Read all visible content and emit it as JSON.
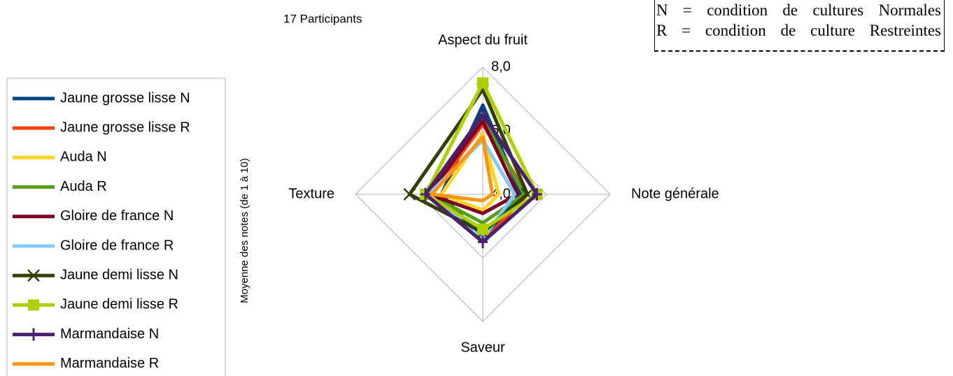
{
  "chart_data": {
    "type": "radar",
    "subtitle": "17 Participants",
    "axis_label": "Moyenne des notes (de 1 à 10)",
    "annotations": [
      "N = condition de cultures Normales",
      "R = condition de culture Restreintes"
    ],
    "categories": [
      "Aspect du fruit",
      "Note générale",
      "Saveur",
      "Texture"
    ],
    "rlim": [
      4,
      8
    ],
    "rticks": [
      {
        "value": 4,
        "label": "4,0"
      },
      {
        "value": 6,
        "label": "6,0"
      },
      {
        "value": 8,
        "label": "8,0"
      }
    ],
    "grid": true,
    "legend": "left",
    "series": [
      {
        "name": "Jaune grosse lisse N",
        "color": "#004586",
        "values": [
          6.8,
          5.2,
          5.4,
          5.3
        ]
      },
      {
        "name": "Jaune grosse lisse R",
        "color": "#ff420e",
        "values": [
          6.2,
          5.4,
          5.5,
          5.6
        ]
      },
      {
        "name": "Auda N",
        "color": "#ffd320",
        "values": [
          5.9,
          4.5,
          4.5,
          5.3
        ]
      },
      {
        "name": "Auda R",
        "color": "#579d1c",
        "values": [
          6.4,
          5.3,
          4.9,
          5.7
        ]
      },
      {
        "name": "Gloire de france N",
        "color": "#7e0021",
        "values": [
          6.3,
          5.1,
          4.6,
          5.7
        ]
      },
      {
        "name": "Gloire de france R",
        "color": "#83caff",
        "values": [
          5.7,
          5.0,
          5.4,
          5.7
        ]
      },
      {
        "name": "Jaune demi lisse N",
        "color": "#314004",
        "marker": "x",
        "values": [
          7.3,
          5.4,
          5.2,
          6.3
        ]
      },
      {
        "name": "Jaune demi lisse R",
        "color": "#aecf00",
        "marker": "square",
        "values": [
          7.5,
          5.7,
          5.1,
          5.8
        ]
      },
      {
        "name": "Marmandaise N",
        "color": "#4b1f6f",
        "marker": "plus",
        "values": [
          6.5,
          5.7,
          5.5,
          5.8
        ]
      },
      {
        "name": "Marmandaise R",
        "color": "#ff950e",
        "values": [
          5.8,
          4.3,
          4.2,
          5.6
        ]
      }
    ]
  }
}
